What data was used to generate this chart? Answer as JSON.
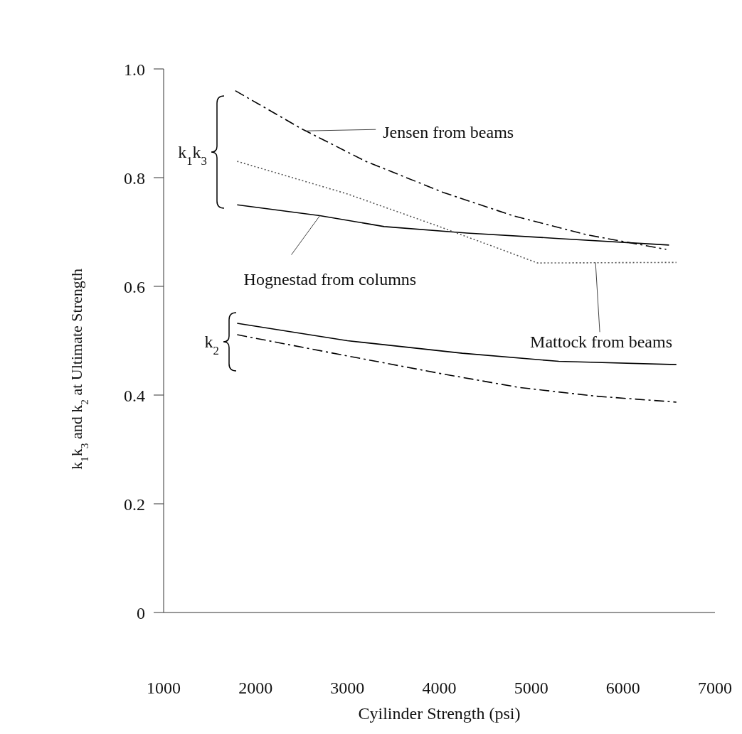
{
  "chart_data": {
    "type": "line",
    "xlabel": "Cyilinder Strength (psi)",
    "ylabel": "k$_{1}$k$_{3}$ and k$_{2}$ at Ultimate Strength",
    "xlim": [
      1000,
      7000
    ],
    "xticks": [
      1000,
      2000,
      3000,
      4000,
      5000,
      6000,
      7000
    ],
    "ylim": [
      0,
      1
    ],
    "yticks": [
      0,
      0.2,
      0.4,
      0.6,
      0.8,
      {
        "value": 1,
        "label": "1.0"
      }
    ],
    "marker": "none",
    "series": [
      {
        "color": "#000000",
        "line_style": "dashed",
        "x": [
          1780,
          2500,
          3200,
          4040,
          4800,
          5600,
          6470
        ],
        "values": [
          0.96,
          0.89,
          0.83,
          0.773,
          0.73,
          0.695,
          0.668
        ]
      },
      {
        "color": "#000000",
        "line_style": "solid",
        "x": [
          1800,
          2700,
          3400,
          4300,
          5300,
          6500
        ],
        "values": [
          0.75,
          0.73,
          0.71,
          0.698,
          0.688,
          0.676
        ]
      },
      {
        "color": "#555555",
        "line_style": "dotted",
        "x": [
          1800,
          3000,
          4000,
          5070,
          6580
        ],
        "values": [
          0.83,
          0.77,
          0.71,
          0.643,
          0.644
        ]
      },
      {
        "color": "#000000",
        "line_style": "solid",
        "x": [
          1800,
          3000,
          4250,
          5300,
          6580
        ],
        "values": [
          0.532,
          0.5,
          0.477,
          0.462,
          0.456
        ]
      },
      {
        "color": "#000000",
        "line_style": "dashed",
        "x": [
          1800,
          3000,
          4000,
          4870,
          5700,
          6580
        ],
        "values": [
          0.511,
          0.472,
          0.44,
          0.414,
          0.398,
          0.387
        ]
      }
    ],
    "annotations": [
      "k$_{1}$k$_{3}$",
      "k$_{2}$",
      {
        "text": "Jensen from beams",
        "x": 2550,
        "y": 0.886
      },
      {
        "text": "Hognestad from columns",
        "x": 2700,
        "y": 0.73
      },
      {
        "text": "Mattock from beams",
        "x": 5700,
        "y": 0.644
      }
    ]
  }
}
